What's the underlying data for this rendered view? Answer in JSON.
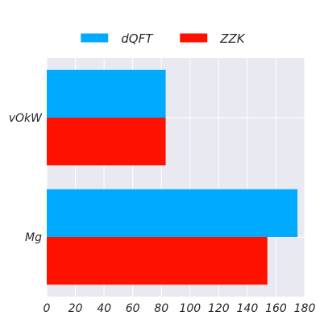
{
  "chart_data": {
    "type": "bar",
    "orientation": "horizontal",
    "categories": [
      "vOkW",
      "Mg"
    ],
    "series": [
      {
        "name": "dQFT",
        "color": "#00aaff",
        "values": [
          83,
          175
        ]
      },
      {
        "name": "ZZK",
        "color": "#ff1100",
        "values": [
          83,
          154
        ]
      }
    ],
    "xlim": [
      0,
      180
    ],
    "xticks": [
      0,
      20,
      40,
      60,
      80,
      100,
      120,
      140,
      160,
      180
    ],
    "title": "",
    "xlabel": "",
    "ylabel": "",
    "grid": true,
    "legend_position": "top-center",
    "background_color": "#e9e9f1",
    "grid_color": "#ffffff"
  }
}
